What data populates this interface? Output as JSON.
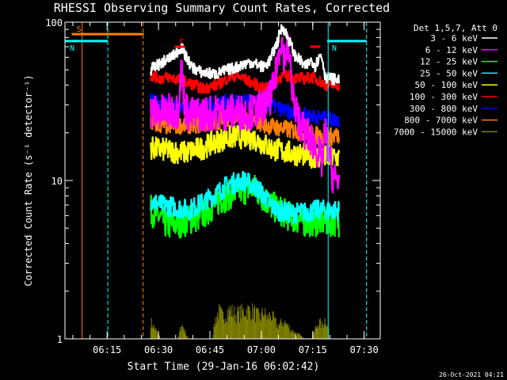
{
  "chart_data": {
    "type": "line",
    "title": "RHESSI Observing Summary Count Rates, Corrected",
    "xlabel": "Start Time (29-Jan-16 06:02:42)",
    "ylabel": "Corrected Count Rate (s⁻¹ detector⁻¹)",
    "yscale": "log",
    "ylim": [
      1,
      100
    ],
    "xlim_minutes": [
      0,
      92
    ],
    "xticks": [
      {
        "label": "06:15",
        "minute": 12.3
      },
      {
        "label": "06:30",
        "minute": 27.3
      },
      {
        "label": "06:45",
        "minute": 42.3
      },
      {
        "label": "07:00",
        "minute": 57.3
      },
      {
        "label": "07:15",
        "minute": 72.3
      },
      {
        "label": "07:30",
        "minute": 87.3
      }
    ],
    "yticks": [
      {
        "label": "1",
        "value": 1
      },
      {
        "label": "10",
        "value": 10
      },
      {
        "label": "100",
        "value": 100
      }
    ],
    "legend_header": "Det 1,5,7, Att 0",
    "legend_position": "right",
    "footer_date": "26-Oct-2021 04:21",
    "markers": [
      {
        "label": "S",
        "color": "#ff7f00",
        "start": 2,
        "end": 23,
        "level": 84
      },
      {
        "label": "N",
        "color": "#00ffff",
        "start": 0,
        "end": 12.5,
        "level": 76
      },
      {
        "label": "N",
        "color": "#00ffff",
        "start": 76.5,
        "end": 88,
        "level": 76
      },
      {
        "label": "F",
        "color": "#ff0000",
        "start": 32,
        "end": 35,
        "level": 70
      },
      {
        "label": "",
        "color": "#ff0000",
        "start": 71.5,
        "end": 74.5,
        "level": 70
      }
    ],
    "vlines": [
      {
        "minute": 5,
        "color": "#ff7f00",
        "style": "solid"
      },
      {
        "minute": 12.5,
        "color": "#00ffff",
        "style": "dashed"
      },
      {
        "minute": 22.8,
        "color": "#ff7f00",
        "style": "dashed"
      },
      {
        "minute": 76.8,
        "color": "#00ffff",
        "style": "solid"
      },
      {
        "minute": 88,
        "color": "#00ffff",
        "style": "dashed"
      }
    ],
    "series": [
      {
        "name": "3 - 6 keV",
        "color": "#ffffff",
        "x": [
          25,
          28,
          32,
          34,
          35,
          37,
          40,
          44,
          50,
          54,
          56,
          58,
          60,
          62,
          63.5,
          65,
          67,
          69,
          70,
          72,
          73,
          74.5,
          75,
          76,
          78,
          80
        ],
        "y": [
          50,
          55,
          62,
          70,
          62,
          52,
          48,
          47,
          52,
          56,
          54,
          52,
          58,
          75,
          95,
          80,
          62,
          56,
          52,
          58,
          53,
          62,
          60,
          45,
          44,
          43
        ]
      },
      {
        "name": "6 - 12 keV",
        "color": "#ff00ff",
        "x": [
          25,
          30,
          33,
          34,
          35,
          36,
          38,
          45,
          55,
          59,
          61,
          62,
          63,
          64,
          65,
          66,
          67,
          68,
          70,
          72,
          74,
          75,
          76,
          77,
          78,
          79,
          80
        ],
        "y": [
          27,
          27,
          28,
          50,
          30,
          26,
          26,
          27,
          27,
          30,
          38,
          55,
          80,
          60,
          70,
          45,
          28,
          25,
          20,
          18,
          15,
          13,
          20,
          15,
          11,
          10,
          10
        ]
      },
      {
        "name": "12 - 25 keV",
        "color": "#00ff00",
        "x": [
          25,
          30,
          35,
          40,
          45,
          50,
          55,
          60,
          65,
          70,
          75,
          80
        ],
        "y": [
          6.5,
          5.2,
          5.5,
          6.0,
          7.5,
          8.5,
          9.0,
          7.0,
          6.0,
          5.5,
          5.5,
          5.5
        ]
      },
      {
        "name": "25 - 50 keV",
        "color": "#00ffff",
        "x": [
          25,
          28,
          32,
          36,
          40,
          44,
          48,
          52,
          56,
          60,
          62,
          66,
          70,
          74,
          78,
          80
        ],
        "y": [
          7.5,
          7.0,
          6.8,
          6.5,
          7.2,
          8.2,
          9.5,
          10.0,
          9.0,
          7.0,
          6.5,
          6.2,
          6.3,
          6.5,
          6.5,
          6.5
        ]
      },
      {
        "name": "50 - 100 keV",
        "color": "#ffff00",
        "x": [
          25,
          30,
          35,
          40,
          45,
          50,
          55,
          60,
          65,
          70,
          75,
          80
        ],
        "y": [
          16,
          15.5,
          15,
          16,
          18,
          19,
          18.5,
          16,
          15,
          14.5,
          14,
          14
        ]
      },
      {
        "name": "100 - 300 keV",
        "color": "#ff0000",
        "x": [
          25,
          28,
          30,
          32,
          34,
          36,
          38,
          40,
          42,
          44,
          46,
          48,
          50,
          52,
          54,
          56,
          58,
          60,
          62,
          64,
          66,
          68,
          70,
          72,
          74,
          76,
          78,
          80
        ],
        "y": [
          46,
          44,
          45,
          44,
          43,
          41,
          40,
          38,
          39,
          40,
          42,
          45,
          46,
          44,
          42,
          40,
          38,
          40,
          44,
          46,
          45,
          44,
          44,
          45,
          43,
          40,
          40,
          40
        ]
      },
      {
        "name": "300 - 800 keV",
        "color": "#0000ff",
        "x": [
          25,
          30,
          35,
          40,
          45,
          50,
          55,
          60,
          65,
          70,
          75,
          80
        ],
        "y": [
          32,
          30,
          29,
          29,
          31,
          32,
          31,
          30,
          27,
          26,
          25,
          24
        ]
      },
      {
        "name": "800 - 7000 keV",
        "color": "#ff7f00",
        "x": [
          25,
          30,
          35,
          40,
          45,
          50,
          55,
          60,
          65,
          70,
          75,
          80
        ],
        "y": [
          23,
          22,
          22.5,
          22.5,
          24,
          26,
          24,
          22,
          21,
          20,
          19,
          19
        ]
      },
      {
        "name": "7000 - 15000 keV",
        "color": "#808000",
        "x": [
          25,
          28,
          30,
          33,
          34,
          36,
          40,
          43,
          44,
          45,
          46,
          48,
          50,
          53,
          55,
          57,
          58,
          59,
          60,
          62,
          64,
          66,
          70,
          72,
          74,
          75,
          76,
          77
        ],
        "y": [
          1.4,
          1,
          1,
          1,
          1.35,
          1,
          1,
          1,
          1.5,
          1.7,
          1.55,
          1.75,
          1.6,
          1.75,
          1.7,
          1.5,
          1.7,
          1.5,
          1.6,
          1.3,
          1.4,
          1.2,
          1,
          1,
          1.4,
          1.3,
          1.5,
          1.2
        ]
      }
    ]
  }
}
